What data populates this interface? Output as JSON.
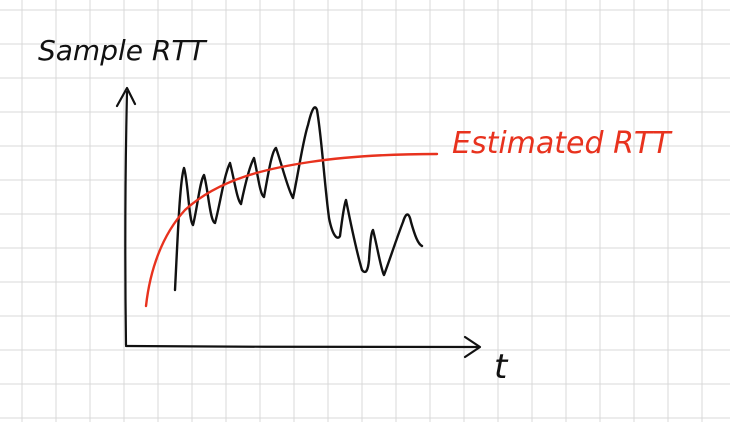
{
  "labels": {
    "y_axis": "Sample RTT",
    "x_axis": "t",
    "curve": "Estimated RTT"
  },
  "colors": {
    "grid": "#d9d9d9",
    "ink": "#111111",
    "estimate": "#e8321e"
  }
}
